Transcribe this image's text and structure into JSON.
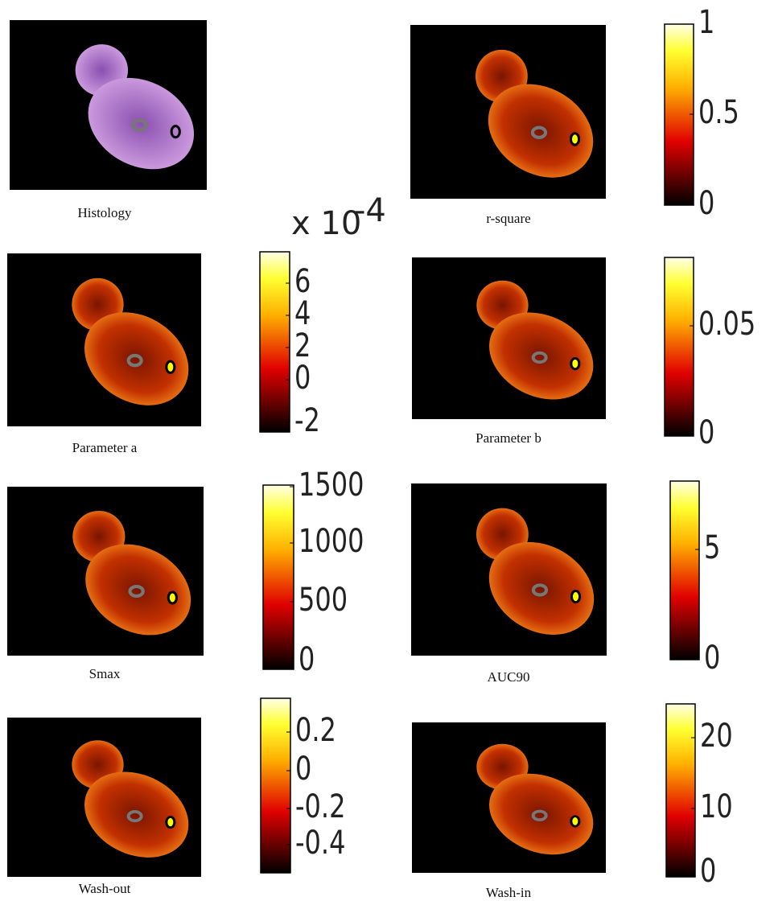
{
  "panels": [
    {
      "caption": "Histology"
    },
    {
      "caption": "r-square",
      "colorbar_ticks": [
        1,
        0.5,
        0
      ]
    },
    {
      "caption": "Parameter a",
      "colorbar_ticks": [
        6,
        4,
        2,
        0,
        -2
      ],
      "exponent": {
        "base": "x 10",
        "power": "-4"
      }
    },
    {
      "caption": "Parameter b",
      "colorbar_ticks": [
        0.05,
        0
      ]
    },
    {
      "caption": "Smax",
      "colorbar_ticks": [
        1500,
        1000,
        500,
        0
      ]
    },
    {
      "caption": "AUC90",
      "colorbar_ticks": [
        5,
        0
      ]
    },
    {
      "caption": "Wash-out",
      "colorbar_ticks": [
        0.2,
        0,
        -0.2,
        -0.4
      ]
    },
    {
      "caption": "Wash-in",
      "colorbar_ticks": [
        20,
        10,
        0
      ]
    }
  ]
}
